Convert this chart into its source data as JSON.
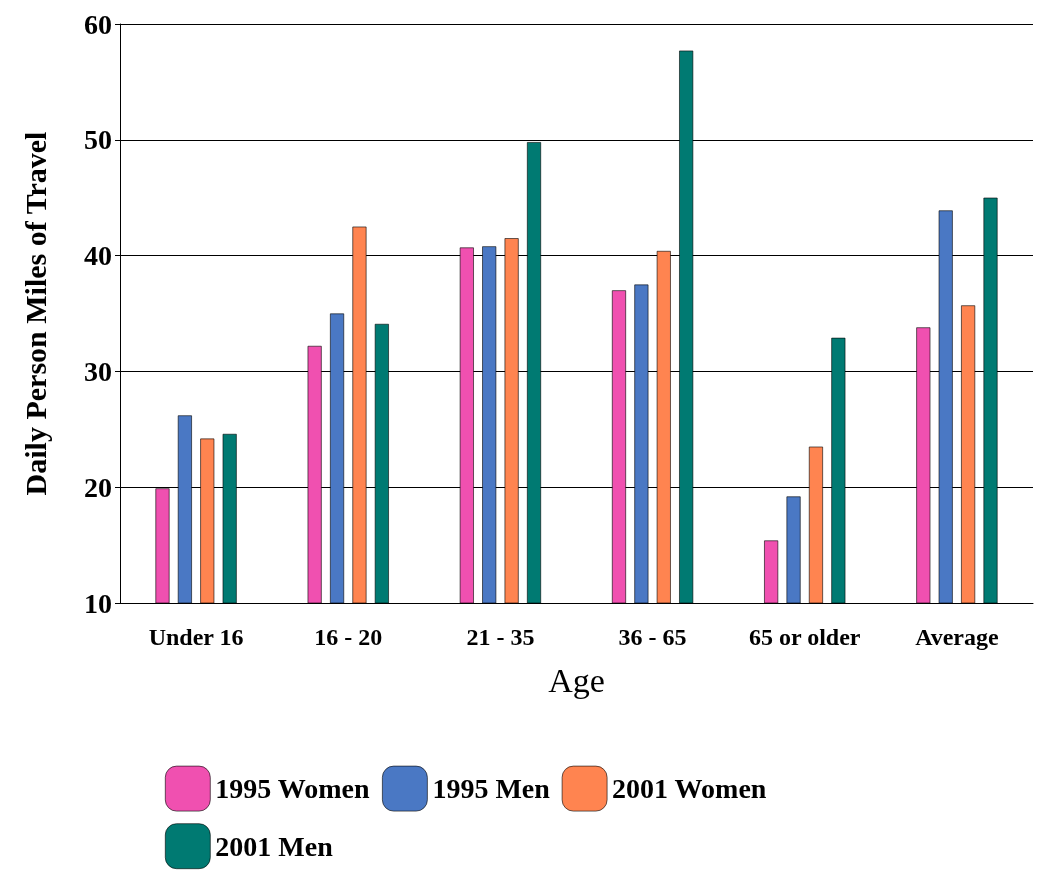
{
  "chart_data": {
    "type": "bar",
    "xlabel": "Age",
    "ylabel": "Daily Person Miles of Travel",
    "categories": [
      "Under 16",
      "16 - 20",
      "21 - 35",
      "36 - 65",
      "65 or older",
      "Average"
    ],
    "series": [
      {
        "name": "1995 Women",
        "color": "#f050b0",
        "values": [
          19.9,
          32.2,
          40.7,
          37.0,
          15.4,
          33.8
        ]
      },
      {
        "name": "1995 Men",
        "color": "#4a78c4",
        "values": [
          26.2,
          35.0,
          40.8,
          37.5,
          19.2,
          43.9
        ]
      },
      {
        "name": "2001 Women",
        "color": "#ff8450",
        "values": [
          24.2,
          42.5,
          41.5,
          40.4,
          23.5,
          35.7
        ]
      },
      {
        "name": "2001 Men",
        "color": "#007a72",
        "values": [
          24.6,
          34.1,
          49.8,
          57.7,
          32.9,
          45.0
        ]
      }
    ],
    "ylim": [
      10,
      60
    ],
    "yticks": [
      10,
      20,
      30,
      40,
      50,
      60
    ],
    "grid": "y",
    "legend": "bottom"
  }
}
